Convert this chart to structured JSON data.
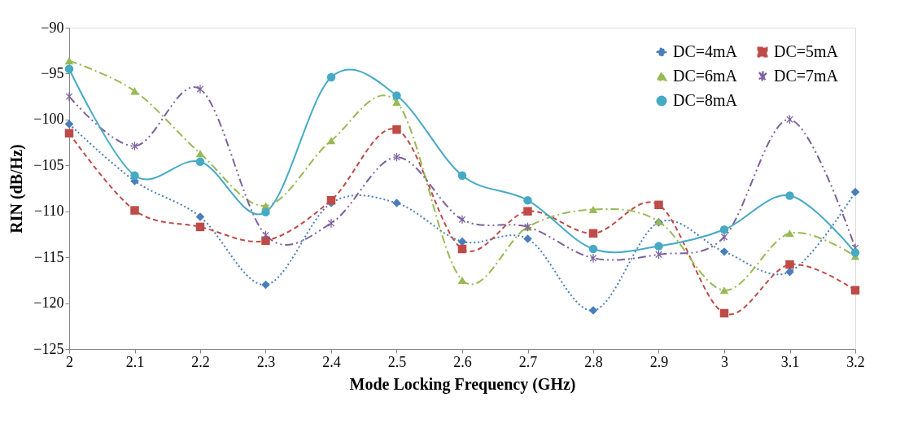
{
  "chart_data": {
    "type": "line",
    "xlabel": "Mode Locking Frequency (GHz)",
    "ylabel": "RIN (dB/Hz)",
    "x": [
      2,
      2.1,
      2.2,
      2.3,
      2.4,
      2.5,
      2.6,
      2.7,
      2.8,
      2.9,
      3,
      3.1,
      3.2
    ],
    "xlim": [
      2,
      3.2
    ],
    "xticks": [
      2,
      2.1,
      2.2,
      2.3,
      2.4,
      2.5,
      2.6,
      2.7,
      2.8,
      2.9,
      3,
      3.1,
      3.2
    ],
    "ylim": [
      -125,
      -90
    ],
    "yticks": [
      -125,
      -120,
      -115,
      -110,
      -105,
      -100,
      -95,
      -90
    ],
    "grid": false,
    "legend": "top right",
    "series": [
      {
        "name": "DC=4mA",
        "color": "#4a7ebb",
        "marker": "diamond",
        "line_style": "dotted",
        "values": [
          -100.5,
          -106.7,
          -110.6,
          -118,
          -109.1,
          -109.1,
          -113.3,
          -113,
          -120.8,
          -111.2,
          -114.4,
          -116.6,
          -107.9
        ]
      },
      {
        "name": "DC=5mA",
        "color": "#be4b48",
        "marker": "square",
        "line_style": "dashed",
        "values": [
          -101.5,
          -109.9,
          -111.7,
          -113.2,
          -108.8,
          -101.1,
          -114.1,
          -110,
          -112.4,
          -109.3,
          -121.1,
          -115.8,
          -118.6
        ]
      },
      {
        "name": "DC=6mA",
        "color": "#98b954",
        "marker": "triangle",
        "line_style": "dashdot",
        "values": [
          -93.6,
          -96.9,
          -103.7,
          -109.4,
          -102.3,
          -98.1,
          -117.5,
          -111.7,
          -109.8,
          -111.1,
          -118.6,
          -112.4,
          -114.9
        ]
      },
      {
        "name": "DC=7mA",
        "color": "#7d60a0",
        "marker": "cross",
        "line_style": "dashdotdot",
        "values": [
          -97.5,
          -102.9,
          -96.7,
          -112.6,
          -111.3,
          -104.1,
          -110.9,
          -111.7,
          -115.1,
          -114.7,
          -112.8,
          -100,
          -114
        ]
      },
      {
        "name": "DC=8mA",
        "color": "#46aac5",
        "marker": "circle",
        "line_style": "solid",
        "values": [
          -94.5,
          -106.1,
          -104.6,
          -110.1,
          -95.4,
          -97.4,
          -106.1,
          -108.8,
          -114.1,
          -113.8,
          -112,
          -108.3,
          -114.5
        ]
      }
    ]
  }
}
